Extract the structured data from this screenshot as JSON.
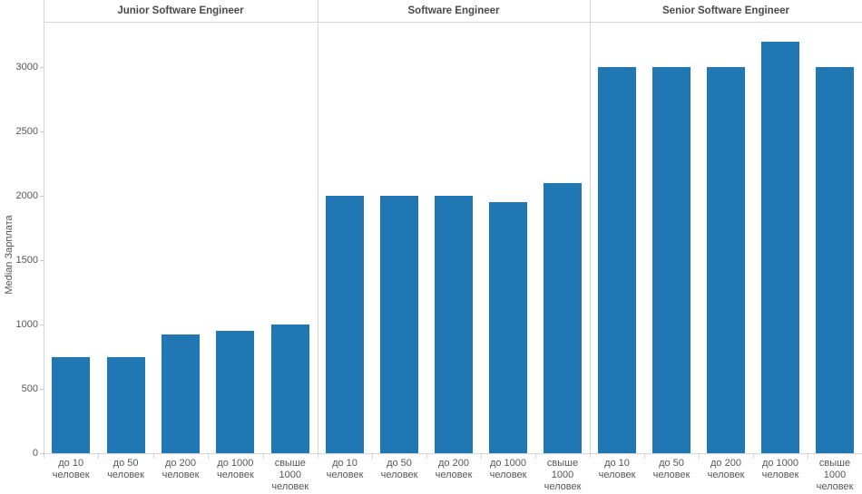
{
  "chart_data": {
    "type": "bar",
    "title": "",
    "xlabel": "",
    "ylabel": "Median Зарплата",
    "ylim": [
      0,
      3350
    ],
    "yticks": [
      0,
      500,
      1000,
      1500,
      2000,
      2500,
      3000
    ],
    "grid": false,
    "legend": null,
    "bar_color": "#2077b4",
    "categories": [
      "до 10 человек",
      "до 50 человек",
      "до 200 человек",
      "до 1000 человек",
      "свыше 1000 человек"
    ],
    "panels": [
      {
        "label": "Junior Software Engineer",
        "values": [
          750,
          750,
          925,
          950,
          1000
        ]
      },
      {
        "label": "Software Engineer",
        "values": [
          2000,
          2000,
          2000,
          1950,
          2100
        ]
      },
      {
        "label": "Senior Software Engineer",
        "values": [
          3000,
          3000,
          3000,
          3200,
          3000
        ]
      }
    ]
  },
  "colors": {
    "bar": "#2077b4",
    "axis_line": "#d4d4d4",
    "tick_text": "#555555",
    "header_text": "#4a4a4a",
    "background": "#ffffff"
  }
}
